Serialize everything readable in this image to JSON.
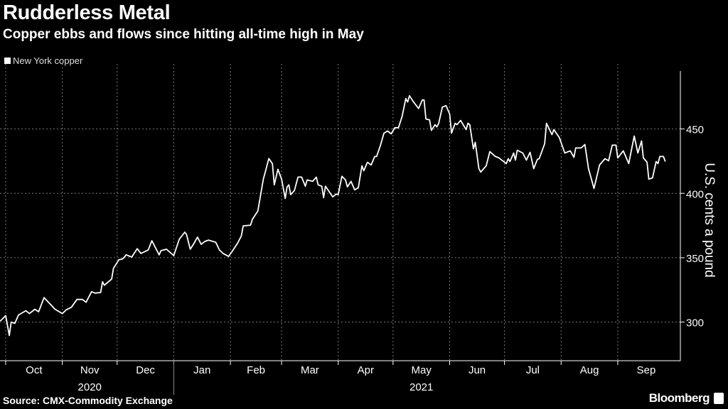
{
  "header": {
    "title": "Rudderless Metal",
    "subtitle": "Copper ebbs and flows since hitting all-time high in May"
  },
  "footer": {
    "source": "Source: CMX-Commodity Exchange",
    "brand": "Bloomberg"
  },
  "colors": {
    "background": "#000000",
    "line": "#ffffff",
    "grid": "#7a7a7a"
  },
  "chart_data": {
    "type": "line",
    "title": "Rudderless Metal",
    "subtitle": "Copper ebbs and flows since hitting all-time high in May",
    "ylabel": "U.S. cents a pound",
    "xlabel": "",
    "ylim": [
      270,
      495
    ],
    "yticks": [
      300,
      350,
      400,
      450
    ],
    "y_axis_position": "right",
    "grid": true,
    "legend_position": "top-left",
    "xticks": [
      {
        "date": "2020-10-01",
        "label": "Oct"
      },
      {
        "date": "2020-11-01",
        "label": "Nov"
      },
      {
        "date": "2020-12-01",
        "label": "Dec"
      },
      {
        "date": "2021-01-01",
        "label": "Jan"
      },
      {
        "date": "2021-02-01",
        "label": "Feb"
      },
      {
        "date": "2021-03-01",
        "label": "Mar"
      },
      {
        "date": "2021-04-01",
        "label": "Apr"
      },
      {
        "date": "2021-05-01",
        "label": "May"
      },
      {
        "date": "2021-06-01",
        "label": "Jun"
      },
      {
        "date": "2021-07-01",
        "label": "Jul"
      },
      {
        "date": "2021-08-01",
        "label": "Aug"
      },
      {
        "date": "2021-09-01",
        "label": "Sep"
      }
    ],
    "years": [
      {
        "label": "2020",
        "under": "Nov"
      },
      {
        "label": "2021",
        "under": "May"
      }
    ],
    "series": [
      {
        "name": "New York copper",
        "points": [
          [
            "2020-09-28",
            300.7
          ],
          [
            "2020-10-01",
            305
          ],
          [
            "2020-10-03",
            289.6
          ],
          [
            "2020-10-04",
            300
          ],
          [
            "2020-10-06",
            299
          ],
          [
            "2020-10-08",
            305.5
          ],
          [
            "2020-10-12",
            308.8
          ],
          [
            "2020-10-14",
            306.6
          ],
          [
            "2020-10-17",
            310
          ],
          [
            "2020-10-19",
            308
          ],
          [
            "2020-10-22",
            319
          ],
          [
            "2020-10-28",
            310
          ],
          [
            "2020-11-01",
            306.6
          ],
          [
            "2020-11-03",
            309.4
          ],
          [
            "2020-11-06",
            311.5
          ],
          [
            "2020-11-09",
            317.6
          ],
          [
            "2020-11-12",
            317.6
          ],
          [
            "2020-11-14",
            315.4
          ],
          [
            "2020-11-17",
            323.6
          ],
          [
            "2020-11-19",
            322.5
          ],
          [
            "2020-11-22",
            323
          ],
          [
            "2020-11-23",
            331.3
          ],
          [
            "2020-11-24",
            328.6
          ],
          [
            "2020-11-28",
            333.5
          ],
          [
            "2020-11-29",
            341.8
          ],
          [
            "2020-12-02",
            348.4
          ],
          [
            "2020-12-04",
            349
          ],
          [
            "2020-12-06",
            352.2
          ],
          [
            "2020-12-09",
            350.5
          ],
          [
            "2020-12-12",
            357
          ],
          [
            "2020-12-14",
            353.3
          ],
          [
            "2020-12-18",
            356
          ],
          [
            "2020-12-20",
            363.2
          ],
          [
            "2020-12-24",
            352.2
          ],
          [
            "2020-12-25",
            355.5
          ],
          [
            "2020-12-28",
            356.6
          ],
          [
            "2021-01-01",
            351.6
          ],
          [
            "2021-01-04",
            364.3
          ],
          [
            "2021-01-07",
            369.8
          ],
          [
            "2021-01-08",
            368
          ],
          [
            "2021-01-10",
            356.6
          ],
          [
            "2021-01-12",
            361
          ],
          [
            "2021-01-14",
            366
          ],
          [
            "2021-01-16",
            360.4
          ],
          [
            "2021-01-18",
            362.6
          ],
          [
            "2021-01-20",
            363.7
          ],
          [
            "2021-01-24",
            362
          ],
          [
            "2021-01-26",
            356
          ],
          [
            "2021-01-28",
            353.3
          ],
          [
            "2021-01-31",
            351
          ],
          [
            "2021-02-02",
            355
          ],
          [
            "2021-02-05",
            361.5
          ],
          [
            "2021-02-07",
            367
          ],
          [
            "2021-02-08",
            374.7
          ],
          [
            "2021-02-12",
            375.3
          ],
          [
            "2021-02-13",
            379.7
          ],
          [
            "2021-02-16",
            386.3
          ],
          [
            "2021-02-18",
            402.7
          ],
          [
            "2021-02-19",
            411
          ],
          [
            "2021-02-20",
            416
          ],
          [
            "2021-02-22",
            427
          ],
          [
            "2021-02-24",
            423
          ],
          [
            "2021-02-25",
            406.6
          ],
          [
            "2021-02-27",
            418.7
          ],
          [
            "2021-03-01",
            411
          ],
          [
            "2021-03-03",
            396
          ],
          [
            "2021-03-04",
            405
          ],
          [
            "2021-03-05",
            406.6
          ],
          [
            "2021-03-06",
            399
          ],
          [
            "2021-03-08",
            402.2
          ],
          [
            "2021-03-10",
            412.6
          ],
          [
            "2021-03-12",
            412.6
          ],
          [
            "2021-03-14",
            405.5
          ],
          [
            "2021-03-15",
            410.4
          ],
          [
            "2021-03-18",
            409.3
          ],
          [
            "2021-03-20",
            412.6
          ],
          [
            "2021-03-21",
            406.6
          ],
          [
            "2021-03-23",
            405.5
          ],
          [
            "2021-03-24",
            396.7
          ],
          [
            "2021-03-25",
            405.5
          ],
          [
            "2021-03-29",
            397.3
          ],
          [
            "2021-03-31",
            399.5
          ],
          [
            "2021-04-01",
            399
          ],
          [
            "2021-04-03",
            413.2
          ],
          [
            "2021-04-05",
            410.4
          ],
          [
            "2021-04-06",
            405
          ],
          [
            "2021-04-08",
            409.3
          ],
          [
            "2021-04-10",
            402.7
          ],
          [
            "2021-04-12",
            404.4
          ],
          [
            "2021-04-14",
            421.4
          ],
          [
            "2021-04-15",
            417.6
          ],
          [
            "2021-04-17",
            424.2
          ],
          [
            "2021-04-19",
            422
          ],
          [
            "2021-04-21",
            428.6
          ],
          [
            "2021-04-22",
            428.6
          ],
          [
            "2021-04-24",
            436.8
          ],
          [
            "2021-04-26",
            446.7
          ],
          [
            "2021-04-28",
            448.4
          ],
          [
            "2021-04-30",
            446.2
          ],
          [
            "2021-05-02",
            451
          ],
          [
            "2021-05-04",
            451
          ],
          [
            "2021-05-06",
            459.9
          ],
          [
            "2021-05-08",
            473.6
          ],
          [
            "2021-05-09",
            470.9
          ],
          [
            "2021-05-10",
            475.8
          ],
          [
            "2021-05-12",
            471.4
          ],
          [
            "2021-05-15",
            465.9
          ],
          [
            "2021-05-17",
            472.5
          ],
          [
            "2021-05-18",
            472.5
          ],
          [
            "2021-05-19",
            457.7
          ],
          [
            "2021-05-21",
            457.1
          ],
          [
            "2021-05-22",
            448.9
          ],
          [
            "2021-05-24",
            453.3
          ],
          [
            "2021-05-25",
            451.6
          ],
          [
            "2021-05-26",
            454.4
          ],
          [
            "2021-05-28",
            467
          ],
          [
            "2021-05-30",
            468.1
          ],
          [
            "2021-06-01",
            461.5
          ],
          [
            "2021-06-02",
            446.7
          ],
          [
            "2021-06-04",
            454.4
          ],
          [
            "2021-06-05",
            453.3
          ],
          [
            "2021-06-07",
            456.6
          ],
          [
            "2021-06-10",
            449.5
          ],
          [
            "2021-06-11",
            454.4
          ],
          [
            "2021-06-12",
            453.3
          ],
          [
            "2021-06-14",
            434.6
          ],
          [
            "2021-06-15",
            439.6
          ],
          [
            "2021-06-17",
            419.2
          ],
          [
            "2021-06-18",
            416.5
          ],
          [
            "2021-06-21",
            421.4
          ],
          [
            "2021-06-23",
            432.4
          ],
          [
            "2021-06-26",
            428.6
          ],
          [
            "2021-06-28",
            427.5
          ],
          [
            "2021-06-30",
            425.3
          ],
          [
            "2021-07-02",
            423.1
          ],
          [
            "2021-07-03",
            426.9
          ],
          [
            "2021-07-04",
            424.7
          ],
          [
            "2021-07-06",
            431.3
          ],
          [
            "2021-07-07",
            425.8
          ],
          [
            "2021-07-08",
            433.5
          ],
          [
            "2021-07-11",
            431.3
          ],
          [
            "2021-07-13",
            425.8
          ],
          [
            "2021-07-15",
            431.9
          ],
          [
            "2021-07-17",
            419.2
          ],
          [
            "2021-07-19",
            426.4
          ],
          [
            "2021-07-20",
            426.9
          ],
          [
            "2021-07-23",
            438.5
          ],
          [
            "2021-07-24",
            454.4
          ],
          [
            "2021-07-27",
            445.6
          ],
          [
            "2021-07-28",
            449.5
          ],
          [
            "2021-07-31",
            443.4
          ],
          [
            "2021-08-03",
            431.3
          ],
          [
            "2021-08-06",
            433
          ],
          [
            "2021-08-08",
            428
          ],
          [
            "2021-08-09",
            435.2
          ],
          [
            "2021-08-12",
            435.2
          ],
          [
            "2021-08-14",
            437.9
          ],
          [
            "2021-08-16",
            419.2
          ],
          [
            "2021-08-19",
            403.8
          ],
          [
            "2021-08-22",
            422
          ],
          [
            "2021-08-25",
            426.9
          ],
          [
            "2021-08-27",
            425.3
          ],
          [
            "2021-08-29",
            437.4
          ],
          [
            "2021-08-31",
            437.4
          ],
          [
            "2021-09-01",
            427.5
          ],
          [
            "2021-09-04",
            433
          ],
          [
            "2021-09-07",
            423.1
          ],
          [
            "2021-09-10",
            444.5
          ],
          [
            "2021-09-12",
            431.3
          ],
          [
            "2021-09-14",
            440.7
          ],
          [
            "2021-09-15",
            427.5
          ],
          [
            "2021-09-17",
            424.2
          ],
          [
            "2021-09-18",
            411
          ],
          [
            "2021-09-20",
            412
          ],
          [
            "2021-09-22",
            424.7
          ],
          [
            "2021-09-23",
            423.1
          ],
          [
            "2021-09-24",
            428.6
          ],
          [
            "2021-09-26",
            428.6
          ],
          [
            "2021-09-27",
            424.7
          ]
        ]
      }
    ]
  }
}
